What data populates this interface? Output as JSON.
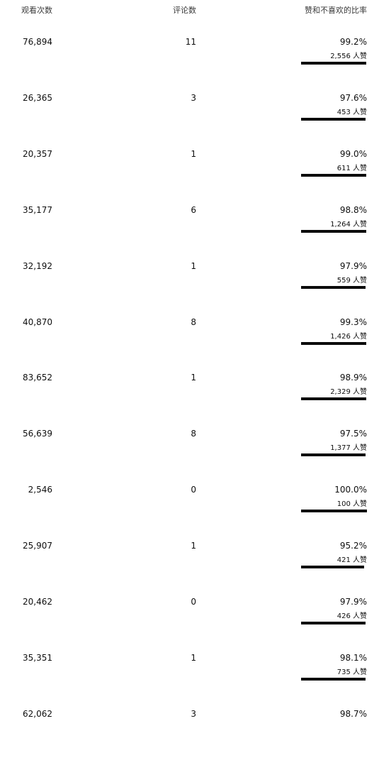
{
  "header": {
    "views": "观看次数",
    "comments": "评论数",
    "ratio": "赞和不喜欢的比率"
  },
  "likes_suffix": "人赞",
  "bar_color": "#0a0a0a",
  "rows": [
    {
      "views": "76,894",
      "comments": "11",
      "percent": "99.2%",
      "likes": "2,556 人赞",
      "ratio": 0.992
    },
    {
      "views": "26,365",
      "comments": "3",
      "percent": "97.6%",
      "likes": "453 人赞",
      "ratio": 0.976
    },
    {
      "views": "20,357",
      "comments": "1",
      "percent": "99.0%",
      "likes": "611 人赞",
      "ratio": 0.99
    },
    {
      "views": "35,177",
      "comments": "6",
      "percent": "98.8%",
      "likes": "1,264 人赞",
      "ratio": 0.988
    },
    {
      "views": "32,192",
      "comments": "1",
      "percent": "97.9%",
      "likes": "559 人赞",
      "ratio": 0.979
    },
    {
      "views": "40,870",
      "comments": "8",
      "percent": "99.3%",
      "likes": "1,426 人赞",
      "ratio": 0.993
    },
    {
      "views": "83,652",
      "comments": "1",
      "percent": "98.9%",
      "likes": "2,329 人赞",
      "ratio": 0.989
    },
    {
      "views": "56,639",
      "comments": "8",
      "percent": "97.5%",
      "likes": "1,377 人赞",
      "ratio": 0.975
    },
    {
      "views": "2,546",
      "comments": "0",
      "percent": "100.0%",
      "likes": "100 人赞",
      "ratio": 1.0
    },
    {
      "views": "25,907",
      "comments": "1",
      "percent": "95.2%",
      "likes": "421 人赞",
      "ratio": 0.952
    },
    {
      "views": "20,462",
      "comments": "0",
      "percent": "97.9%",
      "likes": "426 人赞",
      "ratio": 0.979
    },
    {
      "views": "35,351",
      "comments": "1",
      "percent": "98.1%",
      "likes": "735 人赞",
      "ratio": 0.981
    },
    {
      "views": "62,062",
      "comments": "3",
      "percent": "98.7%",
      "likes": "",
      "ratio": null
    }
  ]
}
